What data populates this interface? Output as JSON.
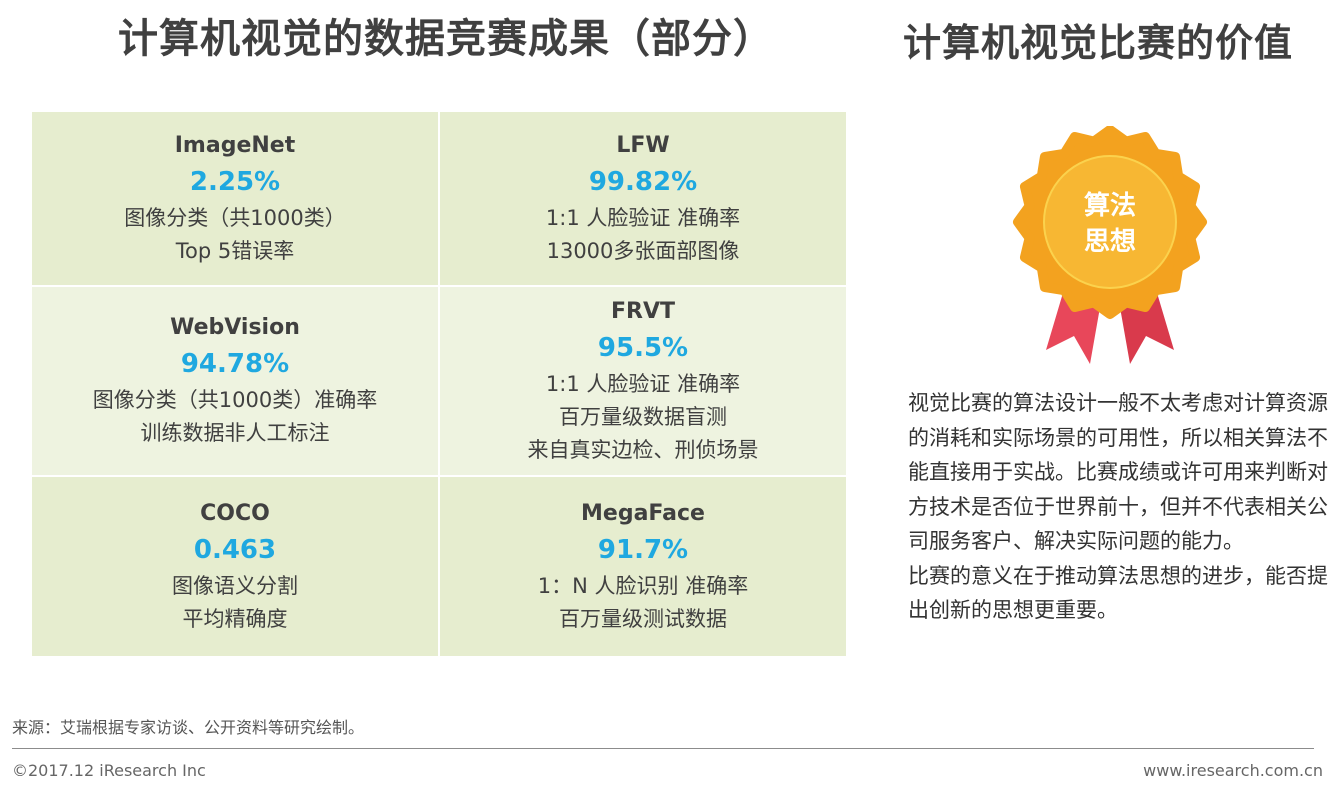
{
  "header": {
    "left_title": "计算机视觉的数据竞赛成果（部分）",
    "right_title": "计算机视觉比赛的价值"
  },
  "results": [
    {
      "name": "ImageNet",
      "value": "2.25%",
      "desc": [
        "图像分类（共1000类）",
        "Top 5错误率"
      ]
    },
    {
      "name": "LFW",
      "value": "99.82%",
      "desc": [
        "1:1 人脸验证 准确率",
        "13000多张面部图像"
      ]
    },
    {
      "name": "WebVision",
      "value": "94.78%",
      "desc": [
        "图像分类（共1000类）准确率",
        "训练数据非人工标注"
      ]
    },
    {
      "name": "FRVT",
      "value": "95.5%",
      "desc": [
        "1:1 人脸验证 准确率",
        "百万量级数据盲测",
        "来自真实边检、刑侦场景"
      ]
    },
    {
      "name": "COCO",
      "value": "0.463",
      "desc": [
        "图像语义分割",
        "平均精确度"
      ]
    },
    {
      "name": "MegaFace",
      "value": "91.7%",
      "desc": [
        "1：N 人脸识别 准确率",
        "百万量级测试数据"
      ]
    }
  ],
  "medal": {
    "label_line1": "算法",
    "label_line2": "思想",
    "icon": "award-medal-icon",
    "colors": {
      "outer": "#f3a21f",
      "inner": "#f7b733",
      "ribbon": "#e8475a"
    }
  },
  "value_text": {
    "paragraph1": "视觉比赛的算法设计一般不太考虑对计算资源的消耗和实际场景的可用性，所以相关算法不能直接用于实战。比赛成绩或许可用来判断对方技术是否位于世界前十，但并不代表相关公司服务客户、解决实际问题的能力。",
    "paragraph2": "比赛的意义在于推动算法思想的进步，能否提出创新的思想更重要。"
  },
  "footer": {
    "source": "来源：艾瑞根据专家访谈、公开资料等研究绘制。",
    "copyright": "©2017.12 iResearch Inc",
    "website": "www.iresearch.com.cn"
  },
  "colors": {
    "value_blue": "#1fa8e0",
    "cell_green": "#e6edcf",
    "cell_light": "#eef3e0"
  }
}
